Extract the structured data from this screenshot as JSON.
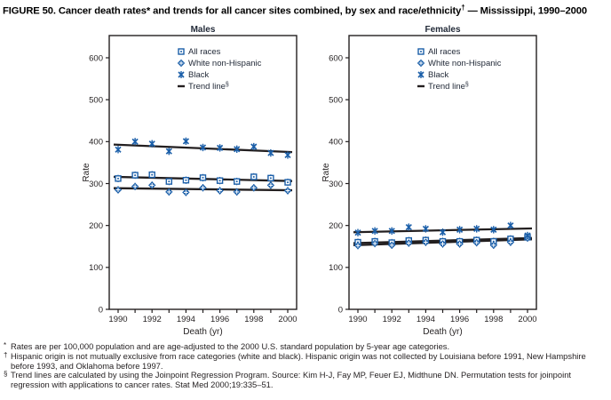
{
  "title": {
    "part1": "FIGURE 50. Cancer death rates* and trends for all cancer sites combined, by sex and race/ethnicity",
    "sup": "†",
    "part2": " — Mississippi, 1990–2000"
  },
  "colors": {
    "series_blue": "#1B5FA9",
    "trend_black": "#231F20",
    "heading_text": "#222A38",
    "axis_text": "#231F20",
    "background": "#FFFFFF"
  },
  "axes": {
    "ylabel": "Rate",
    "xlabel": "Death (yr)",
    "ylim": [
      0,
      650
    ],
    "yticks": [
      0,
      100,
      200,
      300,
      400,
      500,
      600
    ],
    "xtick_labels": [
      1990,
      1992,
      1994,
      1996,
      1998,
      2000
    ],
    "grid": "off"
  },
  "legend": {
    "position": "upper-center-inside",
    "items": [
      {
        "label": "All races",
        "marker": "square"
      },
      {
        "label": "White non-Hispanic",
        "marker": "diamond"
      },
      {
        "label": "Black",
        "marker": "x"
      },
      {
        "label": "Trend line",
        "sup": "§",
        "marker": "trend"
      }
    ]
  },
  "chart_data": [
    {
      "type": "scatter",
      "title": "Males",
      "years": [
        1990,
        1991,
        1992,
        1993,
        1994,
        1995,
        1996,
        1997,
        1998,
        1999,
        2000
      ],
      "series": [
        {
          "name": "All races",
          "marker": "square",
          "values": [
            312,
            320,
            321,
            305,
            308,
            314,
            307,
            305,
            316,
            313,
            303
          ],
          "trend": [
            316,
            306
          ]
        },
        {
          "name": "White non-Hispanic",
          "marker": "diamond",
          "values": [
            285,
            293,
            296,
            280,
            279,
            290,
            283,
            280,
            290,
            296,
            283
          ],
          "trend": [
            289,
            284
          ]
        },
        {
          "name": "Black",
          "marker": "x",
          "values": [
            381,
            400,
            395,
            377,
            401,
            386,
            385,
            382,
            388,
            373,
            368
          ],
          "trend": [
            393,
            375
          ]
        }
      ]
    },
    {
      "type": "scatter",
      "title": "Females",
      "years": [
        1990,
        1991,
        1992,
        1993,
        1994,
        1995,
        1996,
        1997,
        1998,
        1999,
        2000
      ],
      "series": [
        {
          "name": "All races",
          "marker": "square",
          "values": [
            160,
            162,
            159,
            164,
            165,
            162,
            162,
            165,
            162,
            168,
            172
          ],
          "trend": [
            158,
            170
          ]
        },
        {
          "name": "White non-Hispanic",
          "marker": "diamond",
          "values": [
            152,
            157,
            153,
            158,
            160,
            156,
            156,
            159,
            153,
            160,
            170
          ],
          "trend": [
            153,
            167
          ]
        },
        {
          "name": "Black",
          "marker": "x",
          "values": [
            183,
            187,
            187,
            196,
            192,
            184,
            190,
            192,
            190,
            200,
            176
          ],
          "trend": [
            184,
            193
          ]
        }
      ]
    }
  ],
  "footnotes": [
    {
      "sym": "*",
      "text": "Rates are per 100,000 population and are age-adjusted to the 2000 U.S. standard population by 5-year age categories."
    },
    {
      "sym": "†",
      "text": "Hispanic origin is not mutually exclusive from race categories (white and black). Hispanic origin was not collected by Louisiana before 1991, New Hampshire before 1993, and Oklahoma before 1997."
    },
    {
      "sym": "§",
      "text": "Trend lines are calculated by using the Joinpoint Regression Program. Source: Kim H-J, Fay MP, Feuer EJ, Midthune DN. Permutation tests for joinpoint regression with applications to cancer rates. Stat Med 2000;19:335–51."
    }
  ]
}
